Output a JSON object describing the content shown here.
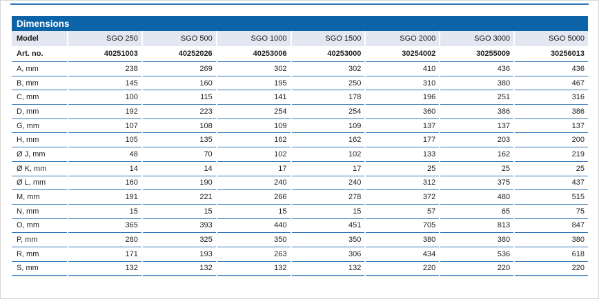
{
  "table": {
    "header_title": "Dimensions",
    "model_row": {
      "label": "Model",
      "values": [
        "SGO 250",
        "SGO 500",
        "SGO 1000",
        "SGO 1500",
        "SGO 2000",
        "SGO 3000",
        "SGO 5000"
      ]
    },
    "art_row": {
      "label": "Art. no.",
      "values": [
        "40251003",
        "40252026",
        "40253006",
        "40253000",
        "30254002",
        "30255009",
        "30256013"
      ]
    },
    "rows": [
      {
        "label": "A, mm",
        "values": [
          238,
          269,
          302,
          302,
          410,
          436,
          436
        ]
      },
      {
        "label": "B, mm",
        "values": [
          145,
          160,
          195,
          250,
          310,
          380,
          467
        ]
      },
      {
        "label": "C, mm",
        "values": [
          100,
          115,
          141,
          178,
          196,
          251,
          316
        ]
      },
      {
        "label": "D, mm",
        "values": [
          192,
          223,
          254,
          254,
          360,
          386,
          386
        ]
      },
      {
        "label": "G, mm",
        "values": [
          107,
          108,
          109,
          109,
          137,
          137,
          137
        ]
      },
      {
        "label": "H, mm",
        "values": [
          105,
          135,
          162,
          162,
          177,
          203,
          200
        ]
      },
      {
        "label": "Ø J, mm",
        "values": [
          48,
          70,
          102,
          102,
          133,
          162,
          219
        ]
      },
      {
        "label": "Ø K, mm",
        "values": [
          14,
          14,
          17,
          17,
          25,
          25,
          25
        ]
      },
      {
        "label": "Ø L, mm",
        "values": [
          160,
          190,
          240,
          240,
          312,
          375,
          437
        ]
      },
      {
        "label": "M, mm",
        "values": [
          191,
          221,
          266,
          278,
          372,
          480,
          515
        ]
      },
      {
        "label": "N, mm",
        "values": [
          15,
          15,
          15,
          15,
          57,
          65,
          75
        ]
      },
      {
        "label": "O, mm",
        "values": [
          365,
          393,
          440,
          451,
          705,
          813,
          847
        ]
      },
      {
        "label": "P, mm",
        "values": [
          280,
          325,
          350,
          350,
          380,
          380,
          380
        ]
      },
      {
        "label": "R, mm",
        "values": [
          171,
          193,
          263,
          306,
          434,
          536,
          618
        ]
      },
      {
        "label": "S, mm",
        "values": [
          132,
          132,
          132,
          132,
          220,
          220,
          220
        ]
      }
    ],
    "colors": {
      "title_bar_bg": "#0d63a8",
      "title_text": "#ffffff",
      "model_row_bg": "#e3e7f1",
      "rule_dark": "#2e75b6",
      "rule_light": "#a9c7e4",
      "text": "#1d1d1b"
    }
  }
}
